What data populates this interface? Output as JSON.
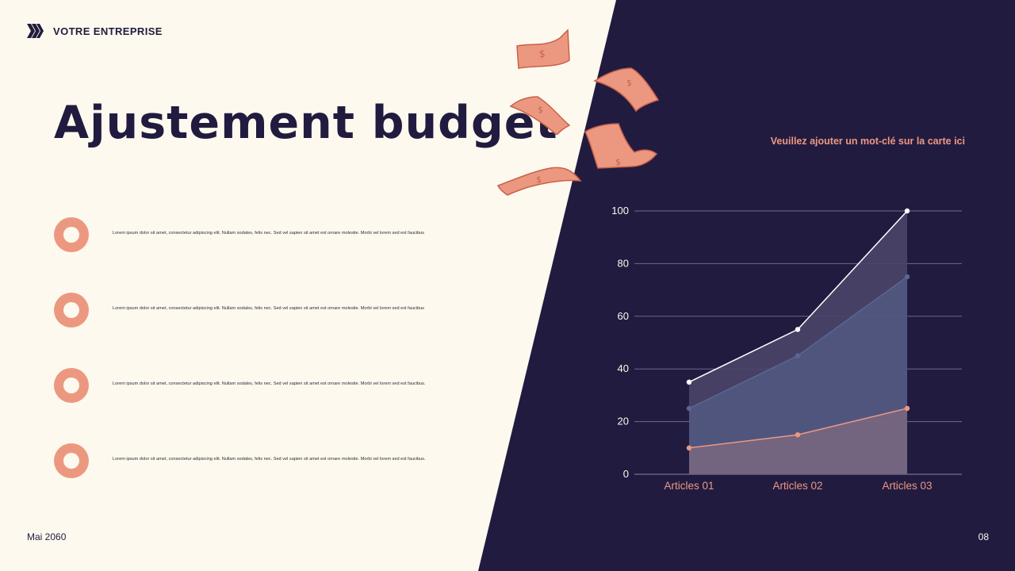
{
  "header": {
    "company": "VOTRE ENTREPRISE"
  },
  "title": "Ajustement budget",
  "keyword_note": "Veuillez ajouter un mot-clé sur la carte ici",
  "bullets": [
    {
      "text": "Lorem ipsum dolor sit amet, consectetur adipiscing elit. Nullam sodales, felis nec. Sed vel sapien sit amet est ornare molestie. Morbi vel lorem sed est faucibus"
    },
    {
      "text": "Lorem ipsum dolor sit amet, consectetur adipiscing elit. Nullam sodales, felis nec. Sed vel sapien sit amet est ornare molestie. Morbi vel lorem sed est faucibus"
    },
    {
      "text": "Lorem ipsum dolor sit amet, consectetur adipiscing elit. Nullam sodales, felis nec. Sed vel sapien sit amet est ornare molestie. Morbi vel lorem sed est faucibus."
    },
    {
      "text": "Lorem ipsum dolor sit amet, consectetur adipiscing elit. Nullam sodales, felis nec. Sed vel sapien sit amet est ornare molestie. Morbi vel lorem sed est faucibus."
    }
  ],
  "footer": {
    "date": "Mai 2060",
    "page": "08"
  },
  "icons": {
    "brand": "chevrons-icon",
    "bullet": "ring-icon",
    "decoration": "money-bill-icon"
  },
  "colors": {
    "dark": "#221b40",
    "cream": "#fdf9ee",
    "accent": "#ec9880",
    "series_white": "#ffffff",
    "series_blue": "#5a6694",
    "series_coral": "#ec9880"
  },
  "chart_data": {
    "type": "area",
    "categories": [
      "Articles 01",
      "Articles 02",
      "Articles 03"
    ],
    "series": [
      {
        "values": [
          35,
          55,
          100
        ]
      },
      {
        "values": [
          25,
          45,
          75
        ]
      },
      {
        "values": [
          10,
          15,
          25
        ]
      }
    ],
    "ylim": [
      0,
      100
    ],
    "yticks": [
      0,
      20,
      40,
      60,
      80,
      100
    ],
    "grid": true,
    "legend": "none"
  }
}
